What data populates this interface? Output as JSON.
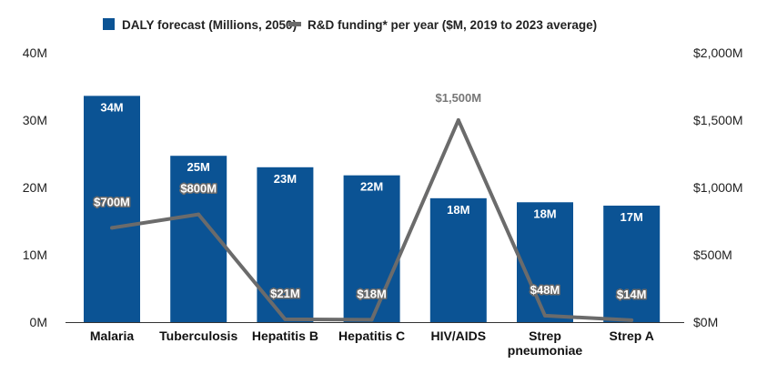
{
  "chart_data": {
    "type": "bar",
    "categories": [
      "Malaria",
      "Tuberculosis",
      "Hepatitis B",
      "Hepatitis C",
      "HIV/AIDS",
      "Strep pneumoniae",
      "Strep A"
    ],
    "category_lines": [
      [
        "Malaria"
      ],
      [
        "Tuberculosis"
      ],
      [
        "Hepatitis B"
      ],
      [
        "Hepatitis C"
      ],
      [
        "HIV/AIDS"
      ],
      [
        "Strep",
        "pneumoniae"
      ],
      [
        "Strep A"
      ]
    ],
    "series": [
      {
        "name": "DALY forecast (Millions, 2050)",
        "type": "bar",
        "axis": "left",
        "color": "#0b5394",
        "values": [
          33.6,
          24.7,
          23.0,
          21.8,
          18.4,
          17.8,
          17.3
        ],
        "labels": [
          "34M",
          "25M",
          "23M",
          "22M",
          "18M",
          "18M",
          "17M"
        ]
      },
      {
        "name": "R&D funding* per year ($M, 2019 to 2023 average)",
        "type": "line",
        "axis": "right",
        "color": "#6b6b6b",
        "values": [
          700,
          800,
          21,
          18,
          1500,
          48,
          14
        ],
        "labels": [
          "$700M",
          "$800M",
          "$21M",
          "$18M",
          "$1,500M",
          "$48M",
          "$14M"
        ]
      }
    ],
    "left_axis": {
      "ylim": [
        0,
        40
      ],
      "ticks": [
        0,
        10,
        20,
        30,
        40
      ],
      "tick_labels": [
        "0M",
        "10M",
        "20M",
        "30M",
        "40M"
      ]
    },
    "right_axis": {
      "ylim": [
        0,
        2000
      ],
      "ticks": [
        0,
        500,
        1000,
        1500,
        2000
      ],
      "tick_labels": [
        "$0M",
        "$500M",
        "$1,000M",
        "$1,500M",
        "$2,000M"
      ]
    },
    "grid": false,
    "legend": "top"
  }
}
